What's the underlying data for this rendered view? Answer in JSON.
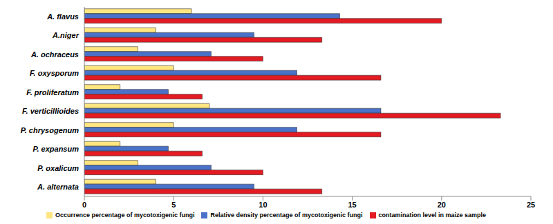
{
  "chart_data": {
    "type": "bar",
    "orientation": "horizontal",
    "categories": [
      "A. flavus",
      "A.niger",
      "A. ochraceus",
      "F. oxysporum",
      "F. proliferatum",
      "F. verticillioides",
      "P. chrysogenum",
      "P. expansum",
      "P. oxalicum",
      "A. alternata"
    ],
    "series": [
      {
        "name": "Occurrence percentage of mycotoxigenic fungi",
        "color": "#ffe680",
        "values": [
          6,
          4,
          3,
          5,
          2,
          7,
          5,
          2,
          3,
          4
        ]
      },
      {
        "name": "Relative density percentage of mycotoxigenic fungi",
        "color": "#4a72c8",
        "values": [
          14.3,
          9.5,
          7.1,
          11.9,
          4.7,
          16.6,
          11.9,
          4.7,
          7.1,
          9.5
        ]
      },
      {
        "name": "contamination level in maize sample",
        "color": "#e31b23",
        "values": [
          20,
          13.3,
          10,
          16.6,
          6.6,
          23.3,
          16.6,
          6.6,
          10,
          13.3
        ]
      }
    ],
    "xlim": [
      0,
      25
    ],
    "xticks": [
      0,
      5,
      10,
      15,
      20,
      25
    ],
    "grid": false,
    "legend": "bottom"
  }
}
